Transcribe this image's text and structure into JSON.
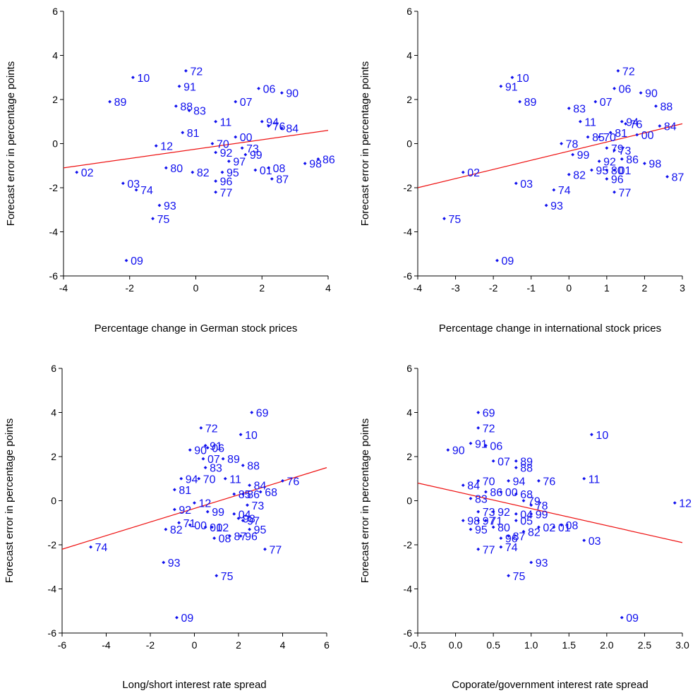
{
  "chart_data": [
    {
      "type": "scatter",
      "ylabel": "Forecast error in percentage points",
      "xlabel": "Percentage change in German stock prices",
      "xlim": [
        -4,
        4
      ],
      "xticks": [
        -4,
        -2,
        0,
        2,
        4
      ],
      "ylim": [
        -6,
        6
      ],
      "yticks": [
        -6,
        -4,
        -2,
        0,
        2,
        4,
        6
      ],
      "regression_line": [
        [
          -4,
          -1.1
        ],
        [
          4,
          0.6
        ]
      ],
      "points": [
        {
          "label": "72",
          "x": -0.3,
          "y": 3.3
        },
        {
          "label": "10",
          "x": -1.9,
          "y": 3.0
        },
        {
          "label": "91",
          "x": -0.5,
          "y": 2.6
        },
        {
          "label": "06",
          "x": 1.9,
          "y": 2.5
        },
        {
          "label": "90",
          "x": 2.6,
          "y": 2.3
        },
        {
          "label": "89",
          "x": -2.6,
          "y": 1.9
        },
        {
          "label": "07",
          "x": 1.2,
          "y": 1.9
        },
        {
          "label": "88",
          "x": -0.6,
          "y": 1.7
        },
        {
          "label": "83",
          "x": -0.2,
          "y": 1.5
        },
        {
          "label": "11",
          "x": 0.6,
          "y": 1.0
        },
        {
          "label": "94",
          "x": 2.0,
          "y": 1.0
        },
        {
          "label": "76",
          "x": 2.2,
          "y": 0.8
        },
        {
          "label": "84",
          "x": 2.6,
          "y": 0.7
        },
        {
          "label": "81",
          "x": -0.4,
          "y": 0.5
        },
        {
          "label": "00",
          "x": 1.2,
          "y": 0.3
        },
        {
          "label": "70",
          "x": 0.5,
          "y": 0.0
        },
        {
          "label": "12",
          "x": -1.2,
          "y": -0.1
        },
        {
          "label": "73",
          "x": 1.4,
          "y": -0.2
        },
        {
          "label": "92",
          "x": 0.6,
          "y": -0.4
        },
        {
          "label": "99",
          "x": 1.5,
          "y": -0.5
        },
        {
          "label": "97",
          "x": 1.0,
          "y": -0.8
        },
        {
          "label": "86",
          "x": 3.7,
          "y": -0.7
        },
        {
          "label": "98",
          "x": 3.3,
          "y": -0.9
        },
        {
          "label": "80",
          "x": -0.9,
          "y": -1.1
        },
        {
          "label": "01",
          "x": 1.8,
          "y": -1.2
        },
        {
          "label": "08",
          "x": 2.2,
          "y": -1.1
        },
        {
          "label": "82",
          "x": -0.1,
          "y": -1.3
        },
        {
          "label": "95",
          "x": 0.8,
          "y": -1.3
        },
        {
          "label": "02",
          "x": -3.6,
          "y": -1.3
        },
        {
          "label": "87",
          "x": 2.3,
          "y": -1.6
        },
        {
          "label": "96",
          "x": 0.6,
          "y": -1.7
        },
        {
          "label": "03",
          "x": -2.2,
          "y": -1.8
        },
        {
          "label": "74",
          "x": -1.8,
          "y": -2.1
        },
        {
          "label": "77",
          "x": 0.6,
          "y": -2.2
        },
        {
          "label": "93",
          "x": -1.1,
          "y": -2.8
        },
        {
          "label": "75",
          "x": -1.3,
          "y": -3.4
        },
        {
          "label": "09",
          "x": -2.1,
          "y": -5.3
        }
      ]
    },
    {
      "type": "scatter",
      "ylabel": "Forecast error in percentage points",
      "xlabel": "Percentage change in international stock prices",
      "xlim": [
        -4,
        3
      ],
      "xticks": [
        -4,
        -3,
        -2,
        -1,
        0,
        1,
        2,
        3
      ],
      "ylim": [
        -6,
        6
      ],
      "yticks": [
        -6,
        -4,
        -2,
        0,
        2,
        4,
        6
      ],
      "regression_line": [
        [
          -4,
          -2.0
        ],
        [
          3,
          0.9
        ]
      ],
      "points": [
        {
          "label": "72",
          "x": 1.3,
          "y": 3.3
        },
        {
          "label": "10",
          "x": -1.5,
          "y": 3.0
        },
        {
          "label": "91",
          "x": -1.8,
          "y": 2.6
        },
        {
          "label": "06",
          "x": 1.2,
          "y": 2.5
        },
        {
          "label": "90",
          "x": 1.9,
          "y": 2.3
        },
        {
          "label": "89",
          "x": -1.3,
          "y": 1.9
        },
        {
          "label": "07",
          "x": 0.7,
          "y": 1.9
        },
        {
          "label": "88",
          "x": 2.3,
          "y": 1.7
        },
        {
          "label": "83",
          "x": 0.0,
          "y": 1.6
        },
        {
          "label": "11",
          "x": 0.3,
          "y": 1.0
        },
        {
          "label": "94",
          "x": 1.4,
          "y": 1.0
        },
        {
          "label": "76",
          "x": 1.5,
          "y": 0.9
        },
        {
          "label": "84",
          "x": 2.4,
          "y": 0.8
        },
        {
          "label": "81",
          "x": 1.1,
          "y": 0.5
        },
        {
          "label": "00",
          "x": 1.8,
          "y": 0.4
        },
        {
          "label": "85",
          "x": 0.5,
          "y": 0.3
        },
        {
          "label": "70",
          "x": 0.8,
          "y": 0.3
        },
        {
          "label": "78",
          "x": -0.2,
          "y": 0.0
        },
        {
          "label": "79",
          "x": 1.0,
          "y": -0.2
        },
        {
          "label": "99",
          "x": 0.1,
          "y": -0.5
        },
        {
          "label": "73",
          "x": 1.2,
          "y": -0.3
        },
        {
          "label": "86",
          "x": 1.4,
          "y": -0.7
        },
        {
          "label": "92",
          "x": 0.8,
          "y": -0.8
        },
        {
          "label": "98",
          "x": 2.0,
          "y": -0.9
        },
        {
          "label": "80",
          "x": 1.0,
          "y": -1.2
        },
        {
          "label": "01",
          "x": 1.2,
          "y": -1.2
        },
        {
          "label": "82",
          "x": 0.0,
          "y": -1.4
        },
        {
          "label": "95",
          "x": 0.6,
          "y": -1.2
        },
        {
          "label": "02",
          "x": -2.8,
          "y": -1.3
        },
        {
          "label": "87",
          "x": 2.6,
          "y": -1.5
        },
        {
          "label": "96",
          "x": 1.0,
          "y": -1.6
        },
        {
          "label": "03",
          "x": -1.4,
          "y": -1.8
        },
        {
          "label": "74",
          "x": -0.4,
          "y": -2.1
        },
        {
          "label": "77",
          "x": 1.2,
          "y": -2.2
        },
        {
          "label": "93",
          "x": -0.6,
          "y": -2.8
        },
        {
          "label": "75",
          "x": -3.3,
          "y": -3.4
        },
        {
          "label": "09",
          "x": -1.9,
          "y": -5.3
        }
      ]
    },
    {
      "type": "scatter",
      "ylabel": "Forecast error in percentage points",
      "xlabel": "Long/short interest rate spread",
      "xlim": [
        -6,
        6
      ],
      "xticks": [
        -6,
        -4,
        -2,
        0,
        2,
        4,
        6
      ],
      "ylim": [
        -6,
        6
      ],
      "yticks": [
        -6,
        -4,
        -2,
        0,
        2,
        4,
        6
      ],
      "regression_line": [
        [
          -6,
          -2.2
        ],
        [
          6,
          1.5
        ]
      ],
      "points": [
        {
          "label": "69",
          "x": 2.6,
          "y": 4.0
        },
        {
          "label": "72",
          "x": 0.3,
          "y": 3.3
        },
        {
          "label": "10",
          "x": 2.1,
          "y": 3.0
        },
        {
          "label": "91",
          "x": 0.5,
          "y": 2.5
        },
        {
          "label": "90",
          "x": -0.2,
          "y": 2.3
        },
        {
          "label": "06",
          "x": 0.6,
          "y": 2.4
        },
        {
          "label": "07",
          "x": 0.4,
          "y": 1.9
        },
        {
          "label": "89",
          "x": 1.3,
          "y": 1.9
        },
        {
          "label": "88",
          "x": 2.2,
          "y": 1.6
        },
        {
          "label": "83",
          "x": 0.5,
          "y": 1.5
        },
        {
          "label": "94",
          "x": -0.6,
          "y": 1.0
        },
        {
          "label": "70",
          "x": 0.2,
          "y": 1.0
        },
        {
          "label": "11",
          "x": 1.4,
          "y": 1.0
        },
        {
          "label": "76",
          "x": 4.0,
          "y": 0.9
        },
        {
          "label": "84",
          "x": 2.5,
          "y": 0.7
        },
        {
          "label": "81",
          "x": -0.9,
          "y": 0.5
        },
        {
          "label": "68",
          "x": 3.0,
          "y": 0.4
        },
        {
          "label": "85",
          "x": 1.8,
          "y": 0.3
        },
        {
          "label": "86",
          "x": 2.2,
          "y": 0.3
        },
        {
          "label": "12",
          "x": 0.0,
          "y": -0.1
        },
        {
          "label": "92",
          "x": -0.9,
          "y": -0.4
        },
        {
          "label": "99",
          "x": 0.6,
          "y": -0.5
        },
        {
          "label": "73",
          "x": 2.4,
          "y": -0.2
        },
        {
          "label": "04",
          "x": 1.8,
          "y": -0.6
        },
        {
          "label": "71",
          "x": -0.7,
          "y": -1.0
        },
        {
          "label": "98",
          "x": 2.0,
          "y": -0.8
        },
        {
          "label": "97",
          "x": 2.2,
          "y": -0.9
        },
        {
          "label": "00",
          "x": -0.2,
          "y": -1.1
        },
        {
          "label": "82",
          "x": -1.3,
          "y": -1.3
        },
        {
          "label": "01",
          "x": 0.5,
          "y": -1.2
        },
        {
          "label": "02",
          "x": 0.8,
          "y": -1.2
        },
        {
          "label": "95",
          "x": 2.5,
          "y": -1.3
        },
        {
          "label": "08",
          "x": 0.9,
          "y": -1.7
        },
        {
          "label": "87",
          "x": 1.6,
          "y": -1.6
        },
        {
          "label": "96",
          "x": 2.1,
          "y": -1.6
        },
        {
          "label": "74",
          "x": -4.7,
          "y": -2.1
        },
        {
          "label": "77",
          "x": 3.2,
          "y": -2.2
        },
        {
          "label": "93",
          "x": -1.4,
          "y": -2.8
        },
        {
          "label": "75",
          "x": 1.0,
          "y": -3.4
        },
        {
          "label": "09",
          "x": -0.8,
          "y": -5.3
        }
      ]
    },
    {
      "type": "scatter",
      "ylabel": "Forecast error in percentage points",
      "xlabel": "Coporate/government interest rate spread",
      "xlim": [
        -0.5,
        3.0
      ],
      "xticks": [
        "-0.5",
        "0.0",
        "0.5",
        "1.0",
        "1.5",
        "2.0",
        "2.5",
        "3.0"
      ],
      "ylim": [
        -6,
        6
      ],
      "yticks": [
        -6,
        -4,
        -2,
        0,
        2,
        4,
        6
      ],
      "regression_line": [
        [
          -0.5,
          0.8
        ],
        [
          3.0,
          -1.9
        ]
      ],
      "points": [
        {
          "label": "69",
          "x": 0.3,
          "y": 4.0
        },
        {
          "label": "72",
          "x": 0.3,
          "y": 3.3
        },
        {
          "label": "10",
          "x": 1.8,
          "y": 3.0
        },
        {
          "label": "91",
          "x": 0.2,
          "y": 2.6
        },
        {
          "label": "06",
          "x": 0.4,
          "y": 2.5
        },
        {
          "label": "90",
          "x": -0.1,
          "y": 2.3
        },
        {
          "label": "07",
          "x": 0.5,
          "y": 1.8
        },
        {
          "label": "89",
          "x": 0.8,
          "y": 1.8
        },
        {
          "label": "88",
          "x": 0.8,
          "y": 1.5
        },
        {
          "label": "70",
          "x": 0.3,
          "y": 0.9
        },
        {
          "label": "94",
          "x": 0.7,
          "y": 0.9
        },
        {
          "label": "76",
          "x": 1.1,
          "y": 0.9
        },
        {
          "label": "11",
          "x": 1.7,
          "y": 1.0
        },
        {
          "label": "84",
          "x": 0.1,
          "y": 0.7
        },
        {
          "label": "86",
          "x": 0.4,
          "y": 0.4
        },
        {
          "label": "00",
          "x": 0.6,
          "y": 0.4
        },
        {
          "label": "68",
          "x": 0.8,
          "y": 0.3
        },
        {
          "label": "83",
          "x": 0.2,
          "y": 0.1
        },
        {
          "label": "79",
          "x": 0.9,
          "y": 0.0
        },
        {
          "label": "78",
          "x": 1.0,
          "y": -0.2
        },
        {
          "label": "12",
          "x": 2.9,
          "y": -0.1
        },
        {
          "label": "73",
          "x": 0.3,
          "y": -0.5
        },
        {
          "label": "92",
          "x": 0.5,
          "y": -0.5
        },
        {
          "label": "04",
          "x": 0.8,
          "y": -0.6
        },
        {
          "label": "99",
          "x": 1.0,
          "y": -0.6
        },
        {
          "label": "98",
          "x": 0.1,
          "y": -0.9
        },
        {
          "label": "97",
          "x": 0.3,
          "y": -0.9
        },
        {
          "label": "71",
          "x": 0.4,
          "y": -0.9
        },
        {
          "label": "05",
          "x": 0.8,
          "y": -0.9
        },
        {
          "label": "80",
          "x": 0.5,
          "y": -1.2
        },
        {
          "label": "95",
          "x": 0.2,
          "y": -1.3
        },
        {
          "label": "02",
          "x": 1.1,
          "y": -1.2
        },
        {
          "label": "01",
          "x": 1.3,
          "y": -1.2
        },
        {
          "label": "08",
          "x": 1.4,
          "y": -1.1
        },
        {
          "label": "82",
          "x": 0.9,
          "y": -1.4
        },
        {
          "label": "87",
          "x": 0.7,
          "y": -1.6
        },
        {
          "label": "96",
          "x": 0.6,
          "y": -1.7
        },
        {
          "label": "03",
          "x": 1.7,
          "y": -1.8
        },
        {
          "label": "77",
          "x": 0.3,
          "y": -2.2
        },
        {
          "label": "74",
          "x": 0.6,
          "y": -2.1
        },
        {
          "label": "93",
          "x": 1.0,
          "y": -2.8
        },
        {
          "label": "75",
          "x": 0.7,
          "y": -3.4
        },
        {
          "label": "09",
          "x": 2.2,
          "y": -5.3
        }
      ]
    }
  ],
  "colors": {
    "points": "#1010ee",
    "regression": "#ee1111",
    "axis": "#000000"
  }
}
